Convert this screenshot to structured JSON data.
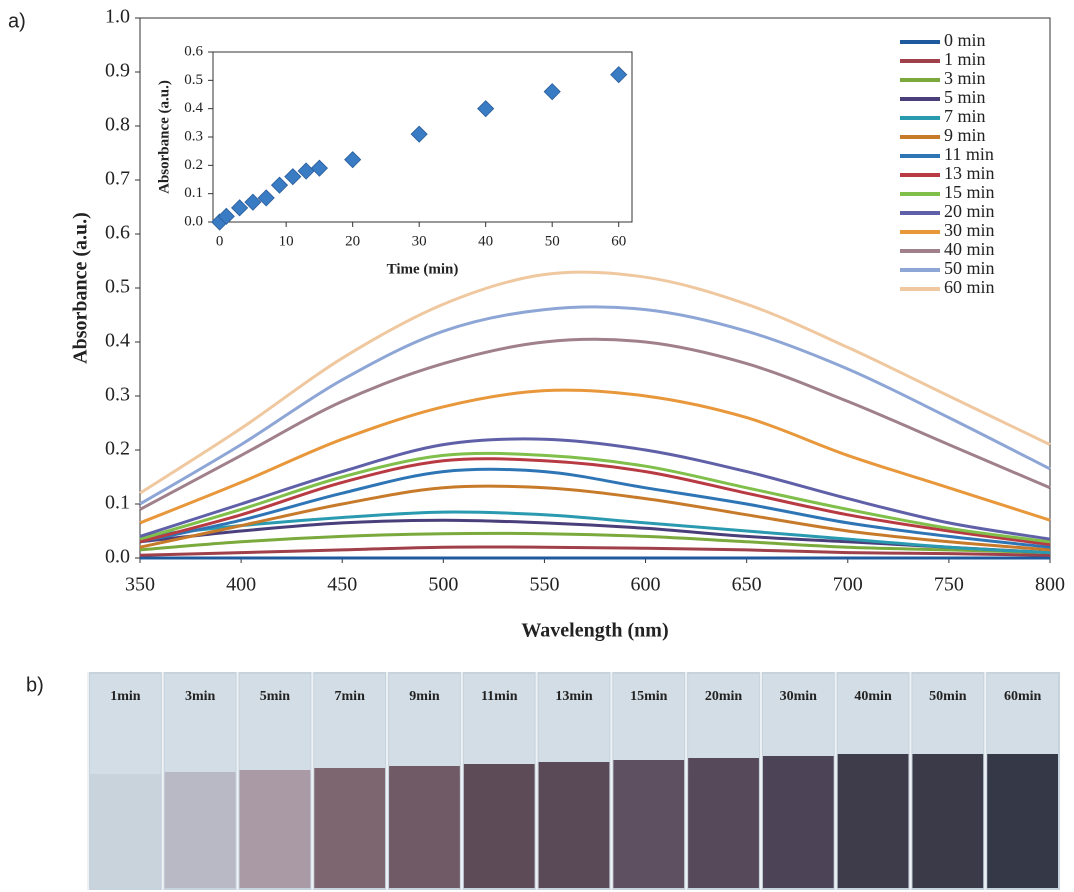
{
  "chart_data": [
    {
      "type": "line",
      "xlabel": "Wavelength (nm)",
      "ylabel": "Absorbance (a.u.)",
      "x": [
        350,
        400,
        450,
        500,
        550,
        600,
        650,
        700,
        750,
        800
      ],
      "xlim": [
        350,
        800
      ],
      "xticks": [
        350,
        400,
        450,
        500,
        550,
        600,
        650,
        700,
        750,
        800
      ],
      "ylim": [
        0,
        1
      ],
      "yticks": [
        {
          "value": 0,
          "label": "0.0"
        },
        0.1,
        0.2,
        0.3,
        0.4,
        0.5,
        0.6,
        0.7,
        0.8,
        0.9,
        {
          "value": 1,
          "label": "1.0"
        }
      ],
      "legend": "upper right",
      "series": [
        {
          "name": "0 min",
          "color": "#1f5a9e",
          "values": [
            0,
            0,
            0,
            0,
            0,
            0,
            0,
            0,
            0,
            0
          ]
        },
        {
          "name": "1 min",
          "color": "#a0404a",
          "values": [
            0.005,
            0.01,
            0.015,
            0.02,
            0.02,
            0.018,
            0.015,
            0.01,
            0.008,
            0.005
          ]
        },
        {
          "name": "3 min",
          "color": "#7aaa3c",
          "values": [
            0.015,
            0.03,
            0.04,
            0.045,
            0.045,
            0.04,
            0.03,
            0.02,
            0.015,
            0.01
          ]
        },
        {
          "name": "5 min",
          "color": "#4a3f7a",
          "values": [
            0.03,
            0.05,
            0.065,
            0.07,
            0.065,
            0.055,
            0.04,
            0.03,
            0.02,
            0.01
          ]
        },
        {
          "name": "7 min",
          "color": "#2a9ab0",
          "values": [
            0.04,
            0.06,
            0.075,
            0.085,
            0.08,
            0.065,
            0.05,
            0.035,
            0.02,
            0.01
          ]
        },
        {
          "name": "9 min",
          "color": "#c77a2a",
          "values": [
            0.02,
            0.06,
            0.1,
            0.13,
            0.13,
            0.11,
            0.08,
            0.05,
            0.03,
            0.015
          ]
        },
        {
          "name": "11 min",
          "color": "#2e75b6",
          "values": [
            0.03,
            0.07,
            0.12,
            0.16,
            0.16,
            0.13,
            0.1,
            0.065,
            0.04,
            0.02
          ]
        },
        {
          "name": "13 min",
          "color": "#b83a42",
          "values": [
            0.03,
            0.08,
            0.14,
            0.18,
            0.18,
            0.16,
            0.12,
            0.08,
            0.05,
            0.025
          ]
        },
        {
          "name": "15 min",
          "color": "#7fbf4a",
          "values": [
            0.035,
            0.09,
            0.15,
            0.19,
            0.19,
            0.17,
            0.13,
            0.09,
            0.055,
            0.03
          ]
        },
        {
          "name": "20 min",
          "color": "#6060a8",
          "values": [
            0.04,
            0.1,
            0.16,
            0.21,
            0.22,
            0.2,
            0.16,
            0.11,
            0.065,
            0.035
          ]
        },
        {
          "name": "30 min",
          "color": "#e8973a",
          "values": [
            0.065,
            0.14,
            0.22,
            0.28,
            0.31,
            0.3,
            0.26,
            0.19,
            0.13,
            0.07
          ]
        },
        {
          "name": "40 min",
          "color": "#a0808a",
          "values": [
            0.09,
            0.19,
            0.29,
            0.36,
            0.4,
            0.4,
            0.36,
            0.29,
            0.21,
            0.13
          ]
        },
        {
          "name": "50 min",
          "color": "#8ea6d6",
          "values": [
            0.1,
            0.21,
            0.33,
            0.42,
            0.46,
            0.46,
            0.42,
            0.35,
            0.26,
            0.165
          ]
        },
        {
          "name": "60 min",
          "color": "#f0c8a0",
          "values": [
            0.12,
            0.24,
            0.37,
            0.47,
            0.525,
            0.52,
            0.47,
            0.39,
            0.3,
            0.21
          ]
        }
      ]
    },
    {
      "type": "scatter",
      "xlabel": "Time (min)",
      "ylabel": "Absorbance (a.u.)",
      "x": [
        0,
        1,
        3,
        5,
        7,
        9,
        11,
        13,
        15,
        20,
        30,
        40,
        50,
        60
      ],
      "values": [
        0,
        0.02,
        0.05,
        0.07,
        0.085,
        0.13,
        0.16,
        0.18,
        0.19,
        0.22,
        0.31,
        0.4,
        0.46,
        0.52
      ],
      "color": "#3a7cc4",
      "xlim": [
        -1,
        62
      ],
      "xticks": [
        0,
        10,
        20,
        30,
        40,
        50,
        60
      ],
      "ylim": [
        0,
        0.6
      ],
      "yticks": [
        {
          "value": 0,
          "label": "0.0"
        },
        0.1,
        0.2,
        0.3,
        0.4,
        0.5,
        0.6
      ]
    }
  ],
  "panels": {
    "a": "a)",
    "b": "b)"
  },
  "photo": {
    "labels": [
      "1min",
      "3min",
      "5min",
      "7min",
      "9min",
      "11min",
      "13min",
      "15min",
      "20min",
      "30min",
      "40min",
      "50min",
      "60min"
    ],
    "colors": [
      "#c9d3dc",
      "#b9b9c6",
      "#a99aa6",
      "#7e6670",
      "#6f5a66",
      "#5e4b58",
      "#5a4a58",
      "#5e5060",
      "#55495a",
      "#4c4456",
      "#3e3c4a",
      "#3a3a48",
      "#353846"
    ]
  }
}
